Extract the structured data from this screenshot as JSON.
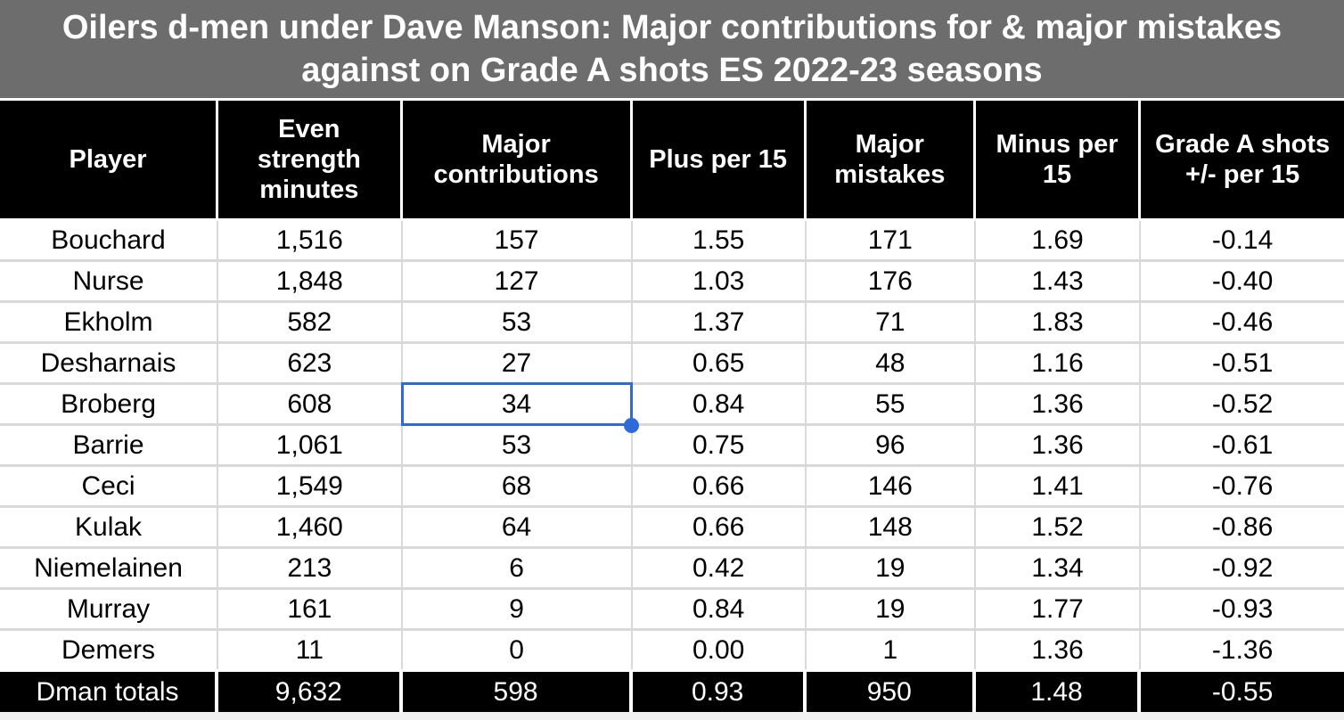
{
  "colors": {
    "title_bg": "#6d6d6d",
    "header_bg": "#000000",
    "header_text": "#ffffff",
    "body_text": "#000000",
    "gridline": "#d9d9d9",
    "selection": "#2e6bd9",
    "footer_strip": "#f1f1f1"
  },
  "title": "Oilers d-men under Dave Manson: Major contributions for & major mistakes against on Grade A shots ES 2022-23 seasons",
  "table": {
    "columns": [
      {
        "label": "Player"
      },
      {
        "label": "Even strength minutes"
      },
      {
        "label": "Major contributions"
      },
      {
        "label": "Plus per 15"
      },
      {
        "label": "Major mistakes"
      },
      {
        "label": "Minus per 15"
      },
      {
        "label": "Grade A shots +/- per 15"
      }
    ],
    "rows": [
      {
        "cells": [
          "Bouchard",
          "1,516",
          "157",
          "1.55",
          "171",
          "1.69",
          "-0.14"
        ]
      },
      {
        "cells": [
          "Nurse",
          "1,848",
          "127",
          "1.03",
          "176",
          "1.43",
          "-0.40"
        ]
      },
      {
        "cells": [
          "Ekholm",
          "582",
          "53",
          "1.37",
          "71",
          "1.83",
          "-0.46"
        ]
      },
      {
        "cells": [
          "Desharnais",
          "623",
          "27",
          "0.65",
          "48",
          "1.16",
          "-0.51"
        ]
      },
      {
        "cells": [
          "Broberg",
          "608",
          "34",
          "0.84",
          "55",
          "1.36",
          "-0.52"
        ]
      },
      {
        "cells": [
          "Barrie",
          "1,061",
          "53",
          "0.75",
          "96",
          "1.36",
          "-0.61"
        ]
      },
      {
        "cells": [
          "Ceci",
          "1,549",
          "68",
          "0.66",
          "146",
          "1.41",
          "-0.76"
        ]
      },
      {
        "cells": [
          "Kulak",
          "1,460",
          "64",
          "0.66",
          "148",
          "1.52",
          "-0.86"
        ]
      },
      {
        "cells": [
          "Niemelainen",
          "213",
          "6",
          "0.42",
          "19",
          "1.34",
          "-0.92"
        ]
      },
      {
        "cells": [
          "Murray",
          "161",
          "9",
          "0.84",
          "19",
          "1.77",
          "-0.93"
        ]
      },
      {
        "cells": [
          "Demers",
          "11",
          "0",
          "0.00",
          "1",
          "1.36",
          "-1.36"
        ]
      }
    ],
    "totals": {
      "cells": [
        "Dman totals",
        "9,632",
        "598",
        "0.93",
        "950",
        "1.48",
        "-0.55"
      ]
    }
  },
  "selection": {
    "row_index": 4,
    "col_index": 2,
    "player": "Broberg",
    "column": "Major contributions",
    "value": "34"
  }
}
